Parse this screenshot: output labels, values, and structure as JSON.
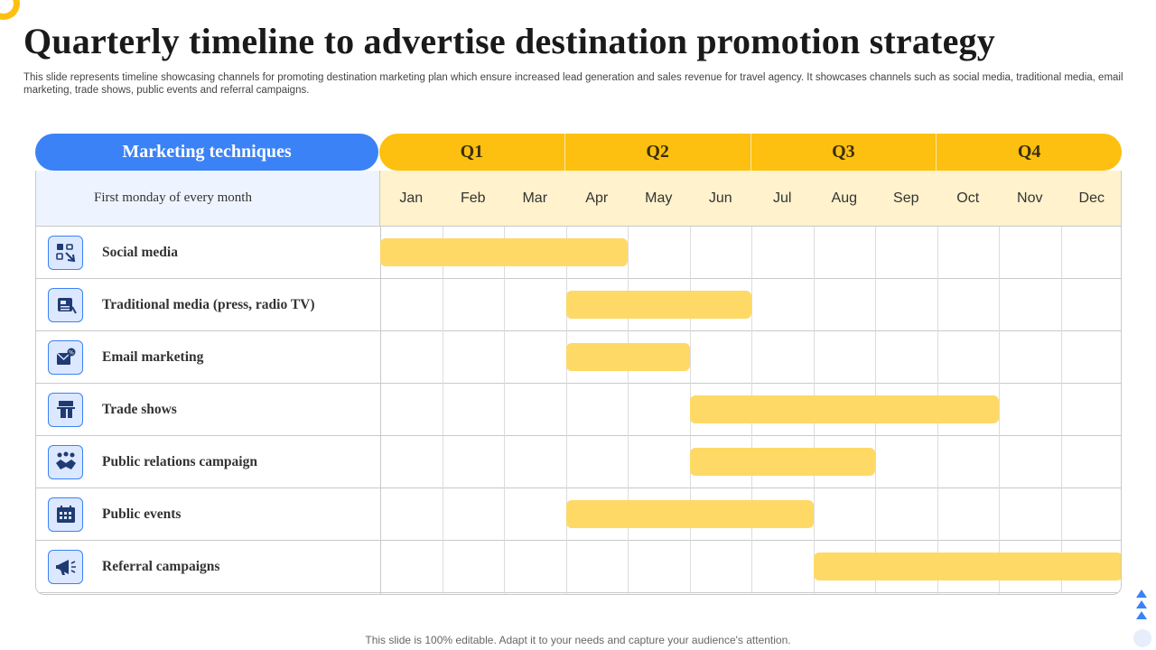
{
  "slide": {
    "title": "Quarterly timeline to advertise destination promotion strategy",
    "subtitle": "This slide represents timeline showcasing channels for promoting destination marketing plan which ensure increased  lead generation and sales revenue for travel agency.  It showcases channels such as social media, traditional media, email marketing, trade shows, public events and referral campaigns.",
    "footer": "This slide is 100% editable. Adapt it to your needs and capture your audience's attention."
  },
  "colors": {
    "accent_blue": "#3b82f6",
    "accent_yellow": "#fdc010",
    "bar_yellow": "#fed966",
    "month_header_bg": "#fff2cc",
    "left_header_bg": "#eef4ff"
  },
  "table": {
    "left_header": "Marketing  techniques",
    "left_subheader": "First monday  of every month",
    "quarters": [
      "Q1",
      "Q2",
      "Q3",
      "Q4"
    ],
    "months": [
      "Jan",
      "Feb",
      "Mar",
      "Apr",
      "May",
      "Jun",
      "Jul",
      "Aug",
      "Sep",
      "Oct",
      "Nov",
      "Dec"
    ]
  },
  "techniques": [
    {
      "label": "Social media",
      "icon": "social-media-icon",
      "start_month": 1,
      "end_month": 4
    },
    {
      "label": "Traditional  media (press, radio TV)",
      "icon": "traditional-media-icon",
      "start_month": 4,
      "end_month": 6
    },
    {
      "label": "Email  marketing",
      "icon": "email-marketing-icon",
      "start_month": 4,
      "end_month": 5
    },
    {
      "label": "Trade shows",
      "icon": "trade-show-icon",
      "start_month": 6,
      "end_month": 10
    },
    {
      "label": "Public  relations campaign",
      "icon": "handshake-icon",
      "start_month": 6,
      "end_month": 8
    },
    {
      "label": "Public  events",
      "icon": "calendar-icon",
      "start_month": 4,
      "end_month": 7
    },
    {
      "label": "Referral campaigns",
      "icon": "megaphone-icon",
      "start_month": 8,
      "end_month": 12
    }
  ]
}
